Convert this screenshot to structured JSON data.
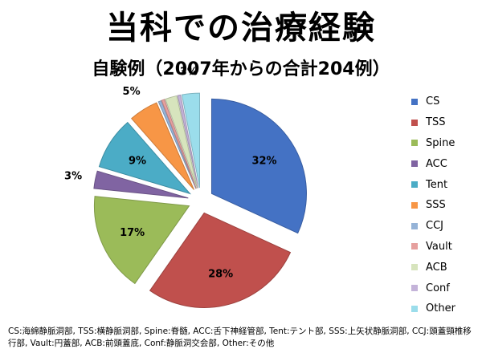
{
  "title": "当科での治療経験",
  "footnote": "CS:海綿静脈洞部, TSS:横静脈洞部, Spine:脊髄, ACC:舌下神経管部, Tent:テント部, SSS:上矢状静脈洞部, CCJ:頭蓋頸椎移行部, Vault:円蓋部, ACB:前頭蓋底, Conf:静脈洞交会部, Other:その他",
  "chart_data": {
    "type": "pie",
    "title": "自験例（2007年からの合計204例）",
    "legend_position": "right",
    "categories": [
      "CS",
      "TSS",
      "Spine",
      "ACC",
      "Tent",
      "SSS",
      "CCJ",
      "Vault",
      "ACB",
      "Conf",
      "Other"
    ],
    "values": [
      32,
      28,
      17,
      3,
      9,
      5,
      0.5,
      0.5,
      2,
      0.5,
      3
    ],
    "data_labels": [
      "32%",
      "28%",
      "17%",
      "3%",
      "9%",
      "5%",
      "",
      "",
      "",
      "",
      "3%"
    ],
    "colors": [
      "#4472C4",
      "#C0504D",
      "#9BBB59",
      "#8064A2",
      "#4BACC6",
      "#F79646",
      "#95B3D7",
      "#E6A09E",
      "#D7E4BD",
      "#C4B3D9",
      "#9BDDEB"
    ],
    "exploded": true
  }
}
